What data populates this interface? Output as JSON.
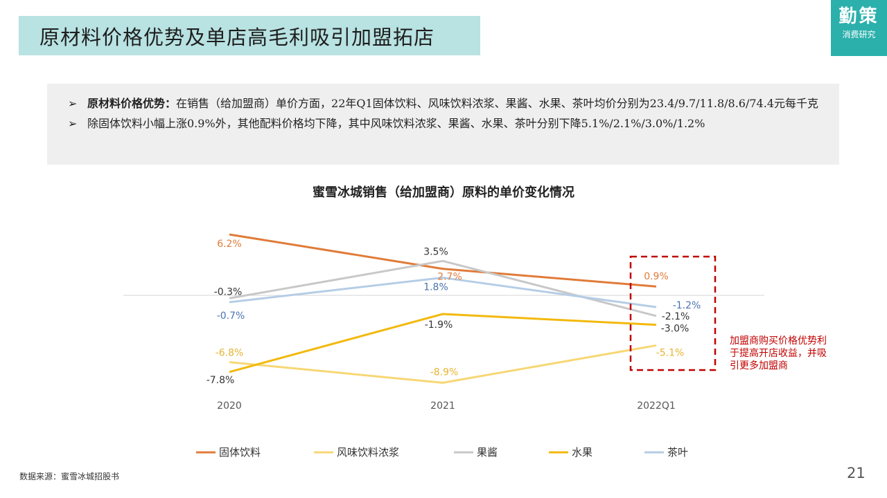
{
  "slide": {
    "title": "原材料价格优势及单店高毛利吸引加盟拓店",
    "brand_top": "勤策",
    "brand_bottom": "消费研究",
    "bullets": [
      {
        "bold": "原材料价格优势：",
        "text": "在销售（给加盟商）单价方面，22年Q1固体饮料、风味饮料浓浆、果酱、水果、茶叶均价分别为23.4/9.7/11.8/8.6/74.4元每千克"
      },
      {
        "bold": "",
        "text": "除固体饮料小幅上涨0.9%外，其他配料价格均下降，其中风味饮料浓浆、果酱、水果、茶叶分别下降5.1%/2.1%/3.0%/1.2%"
      }
    ],
    "bullet_glyph": "➢",
    "source": "数据来源：蜜雪冰城招股书",
    "page_number": "21"
  },
  "chart_data": {
    "type": "line",
    "title": "蜜雪冰城销售（给加盟商）原料的单价变化情况",
    "categories": [
      "2020",
      "2021",
      "2022Q1"
    ],
    "unit": "%",
    "series": [
      {
        "name": "固体饮料",
        "color": "#e07b39",
        "values": [
          6.2,
          2.7,
          0.9
        ],
        "labels": [
          "6.2%",
          "2.7%",
          "0.9%"
        ]
      },
      {
        "name": "风味饮料浓浆",
        "color": "#f7d774",
        "values": [
          -6.8,
          -8.9,
          -5.1
        ],
        "labels": [
          "-6.8%",
          "-8.9%",
          "-5.1%"
        ]
      },
      {
        "name": "果酱",
        "color": "#c8c8c8",
        "values": [
          -0.3,
          3.5,
          -2.1
        ],
        "labels": [
          "-0.3%",
          "3.5%",
          "-2.1%"
        ]
      },
      {
        "name": "水果",
        "color": "#f2b90d",
        "values": [
          -7.8,
          -1.9,
          -3.0
        ],
        "labels": [
          "-7.8%",
          "-1.9%",
          "-3.0%"
        ]
      },
      {
        "name": "茶叶",
        "color": "#b5cde6",
        "values": [
          -0.7,
          1.8,
          -1.2
        ],
        "labels": [
          "-0.7%",
          "1.8%",
          "-1.2%"
        ]
      }
    ],
    "label_colors": [
      "#e07b39",
      "#e8b430",
      "#333333",
      "#333333",
      "#4a72b0"
    ],
    "legend_position": "bottom",
    "grid": false,
    "annotation": {
      "lines": [
        "加盟商购买价格优势利",
        "于提高开店收益，并吸",
        "引更多加盟商"
      ],
      "color": "#c00000"
    }
  }
}
